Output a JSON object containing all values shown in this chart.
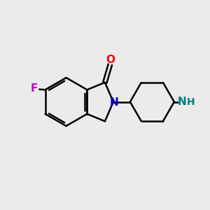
{
  "bg_color": "#ebebeb",
  "bond_color": "#000000",
  "bond_width": 1.8,
  "atom_colors": {
    "F": "#cc00cc",
    "O": "#ff0000",
    "N_isoindole": "#0000cc",
    "N_piperidine": "#008080",
    "H": "#008080"
  },
  "font_size_atoms": 11,
  "fig_size": [
    3.0,
    3.0
  ],
  "dpi": 100,
  "bg_color_light": "#ebebeb"
}
